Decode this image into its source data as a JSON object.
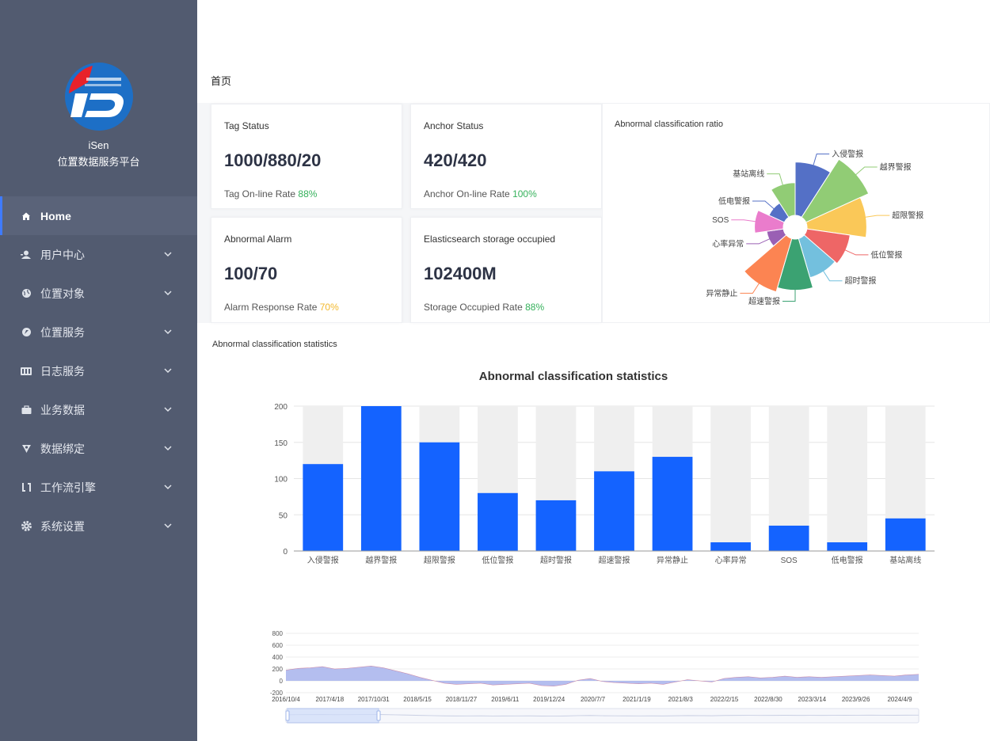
{
  "brand": {
    "name": "iSen",
    "subtitle": "位置数据服务平台"
  },
  "menu": [
    {
      "label": "Home",
      "icon": "home-icon",
      "active": true
    },
    {
      "label": "用户中心",
      "icon": "user-icon"
    },
    {
      "label": "位置对象",
      "icon": "globe-icon"
    },
    {
      "label": "位置服务",
      "icon": "location-icon"
    },
    {
      "label": "日志服务",
      "icon": "log-icon"
    },
    {
      "label": "业务数据",
      "icon": "briefcase-icon"
    },
    {
      "label": "数据绑定",
      "icon": "bind-icon"
    },
    {
      "label": "工作流引擎",
      "icon": "workflow-icon"
    },
    {
      "label": "系统设置",
      "icon": "gear-icon"
    }
  ],
  "breadcrumb": "首页",
  "cards": {
    "tag": {
      "title": "Tag Status",
      "value": "1000/880/20",
      "rate_label": "Tag On-line Rate",
      "rate": "88%"
    },
    "anchor": {
      "title": "Anchor Status",
      "value": "420/420",
      "rate_label": "Anchor On-line Rate",
      "rate": "100%"
    },
    "alarm": {
      "title": "Abnormal Alarm",
      "value": "100/70",
      "rate_label": "Alarm Response Rate",
      "rate": "70%"
    },
    "storage": {
      "title": "Elasticsearch storage occupied",
      "value": "102400M",
      "rate_label": "Storage Occupied Rate",
      "rate": "88%"
    }
  },
  "ratio_panel": {
    "title": "Abnormal classification ratio"
  },
  "stats_panel": {
    "label": "Abnormal classification statistics"
  },
  "chart_data": [
    {
      "type": "pie",
      "variant": "rose",
      "categories": [
        "入侵警报",
        "越界警报",
        "超限警报",
        "低位警报",
        "超时警报",
        "超速警报",
        "异常静止",
        "心率异常",
        "SOS",
        "低电警报",
        "基站离线"
      ],
      "values": [
        120,
        200,
        150,
        80,
        70,
        110,
        130,
        12,
        35,
        12,
        45
      ],
      "colors": [
        "#5470c6",
        "#91cc75",
        "#fac858",
        "#ee6666",
        "#73c0de",
        "#3ba272",
        "#fc8452",
        "#9a60b4",
        "#ea7ccc",
        "#5470c6",
        "#91cc75"
      ]
    },
    {
      "type": "bar",
      "title": "Abnormal classification statistics",
      "categories": [
        "入侵警报",
        "越界警报",
        "超限警报",
        "低位警报",
        "超时警报",
        "超速警报",
        "异常静止",
        "心率异常",
        "SOS",
        "低电警报",
        "基站离线"
      ],
      "values": [
        120,
        200,
        150,
        80,
        70,
        110,
        130,
        12,
        35,
        12,
        45
      ],
      "ylim": [
        0,
        200
      ],
      "yticks": [
        0,
        50,
        100,
        150,
        200
      ],
      "background_bar": 200,
      "color": "#1463ff"
    },
    {
      "type": "area",
      "x_ticks": [
        "2016/10/4",
        "2017/4/18",
        "2017/10/31",
        "2018/5/15",
        "2018/11/27",
        "2019/6/11",
        "2019/12/24",
        "2020/7/7",
        "2021/1/19",
        "2021/8/3",
        "2022/2/15",
        "2022/8/30",
        "2023/3/14",
        "2023/9/26",
        "2024/4/9"
      ],
      "yticks": [
        -200,
        0,
        200,
        400,
        600,
        800
      ],
      "ylim": [
        -200,
        800
      ],
      "values": [
        180,
        210,
        220,
        240,
        200,
        210,
        230,
        250,
        220,
        170,
        120,
        60,
        10,
        -40,
        -60,
        -50,
        -40,
        -70,
        -60,
        -50,
        -40,
        -80,
        -90,
        -60,
        10,
        40,
        -10,
        -30,
        -40,
        -50,
        -40,
        -60,
        -20,
        20,
        0,
        -20,
        40,
        60,
        70,
        50,
        60,
        80,
        60,
        70,
        60,
        70,
        80,
        90,
        100,
        90,
        80,
        100,
        110
      ],
      "color": "#a7b3ec"
    }
  ]
}
